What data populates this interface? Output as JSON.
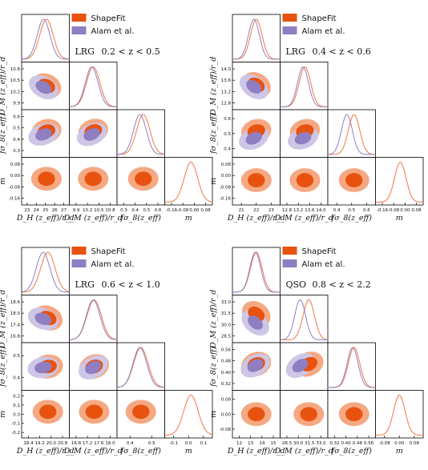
{
  "legend": {
    "shapefit_label": "ShapeFit",
    "alam_label": "Alam et al."
  },
  "colors": {
    "shapefit_inner": "#e8520f",
    "shapefit_outer": "#f5a882",
    "alam_inner": "#8f7fc2",
    "alam_outer": "#cdc6e6",
    "shapefit_line": "#f07845",
    "alam_line": "#8f7fc2"
  },
  "param_labels": {
    "dh": "D_H (z_eff)/r_d",
    "dm": "D_M (z_eff)/r_d",
    "fs": "fσ_8(z_eff)",
    "m": "m"
  },
  "chart_data": [
    {
      "type": "triangle-corner",
      "tracer": "LRG",
      "redshift_range": "0.2 < z < 0.5",
      "parameters": [
        "D_H(z_eff)/r_d",
        "D_M(z_eff)/r_d",
        "fσ_8(z_eff)",
        "m"
      ],
      "ticks": {
        "dh": [
          "23",
          "24",
          "25",
          "26",
          "27"
        ],
        "dm": [
          "9.9",
          "10.2",
          "10.5",
          "10.8"
        ],
        "fs": [
          "0.3",
          "0.4",
          "0.5",
          "0.6"
        ],
        "m": [
          "-0.16",
          "-0.08",
          "0.00",
          "0.08"
        ]
      },
      "y_ticks": {
        "dm": [
          "10.8",
          "10.5",
          "10.2",
          "9.9"
        ],
        "fs": [
          "0.6",
          "0.5",
          "0.4",
          "0.3"
        ],
        "m": [
          "0.08",
          "0.00",
          "-0.08",
          "-0.16"
        ]
      },
      "shapefit_mean": {
        "dh": 25.0,
        "dm": 10.25,
        "fs": 0.47,
        "m": -0.03
      },
      "alam_mean": {
        "dh": 24.8,
        "dm": 10.22,
        "fs": 0.45
      }
    },
    {
      "type": "triangle-corner",
      "tracer": "LRG",
      "redshift_range": "0.4 < z < 0.6",
      "parameters": [
        "D_H(z_eff)/r_d",
        "D_M(z_eff)/r_d",
        "fσ_8(z_eff)",
        "m"
      ],
      "ticks": {
        "dh": [
          "21",
          "22",
          "23"
        ],
        "dm": [
          "12.8",
          "13.2",
          "13.6",
          "14.0"
        ],
        "fs": [
          "0.4",
          "0.5",
          "0.6"
        ],
        "m": [
          "-0.16",
          "-0.08",
          "0.00",
          "0.08"
        ]
      },
      "y_ticks": {
        "dm": [
          "14.0",
          "13.6",
          "13.2",
          "12.8"
        ],
        "fs": [
          "0.6",
          "0.5",
          "0.4"
        ],
        "m": [
          "0.08",
          "0.00",
          "-0.08",
          "-0.16"
        ]
      },
      "shapefit_mean": {
        "dh": 22.3,
        "dm": 13.25,
        "fs": 0.49,
        "m": -0.01
      },
      "alam_mean": {
        "dh": 22.2,
        "dm": 13.2,
        "fs": 0.45
      }
    },
    {
      "type": "triangle-corner",
      "tracer": "LRG",
      "redshift_range": "0.6 < z < 1.0",
      "parameters": [
        "D_H(z_eff)/r_d",
        "D_M(z_eff)/r_d",
        "fσ_8(z_eff)",
        "m"
      ],
      "ticks": {
        "dh": [
          "18.4",
          "19.2",
          "20.0",
          "20.8"
        ],
        "dm": [
          "16.8",
          "17.2",
          "17.6",
          "18.0"
        ],
        "fs": [
          "0.4",
          "0.5"
        ],
        "m": [
          "-0.1",
          "0.0",
          "0.1"
        ]
      },
      "y_ticks": {
        "dm": [
          "18.6",
          "18.0",
          "17.4",
          "16.8"
        ],
        "fs": [
          "0.5",
          "0.4"
        ],
        "m": [
          "0.2",
          "0.1",
          "0.0",
          "-0.1",
          "-0.2"
        ]
      },
      "shapefit_mean": {
        "dh": 19.8,
        "dm": 17.6,
        "fs": 0.47,
        "m": 0.0
      },
      "alam_mean": {
        "dh": 19.6,
        "dm": 17.6,
        "fs": 0.46
      }
    },
    {
      "type": "triangle-corner",
      "tracer": "QSO",
      "redshift_range": "0.8 < z < 2.2",
      "parameters": [
        "D_H(z_eff)/r_d",
        "D_M(z_eff)/r_d",
        "fσ_8(z_eff)",
        "m"
      ],
      "ticks": {
        "dh": [
          "12",
          "13",
          "14",
          "15"
        ],
        "dm": [
          "28.5",
          "30.0",
          "31.5",
          "33.0"
        ],
        "fs": [
          "0.32",
          "0.40",
          "0.48",
          "0.56"
        ],
        "m": [
          "-0.08",
          "0.00",
          "0.08"
        ]
      },
      "y_ticks": {
        "dm": [
          "33.0",
          "31.5",
          "30.0",
          "28.5"
        ],
        "fs": [
          "0.56",
          "0.48",
          "0.40",
          "0.32"
        ],
        "m": [
          "0.08",
          "0.00",
          "-0.08"
        ]
      },
      "shapefit_mean": {
        "dh": 13.3,
        "dm": 31.0,
        "fs": 0.45,
        "m": 0.0
      },
      "alam_mean": {
        "dh": 13.2,
        "dm": 30.3,
        "fs": 0.44
      }
    }
  ]
}
